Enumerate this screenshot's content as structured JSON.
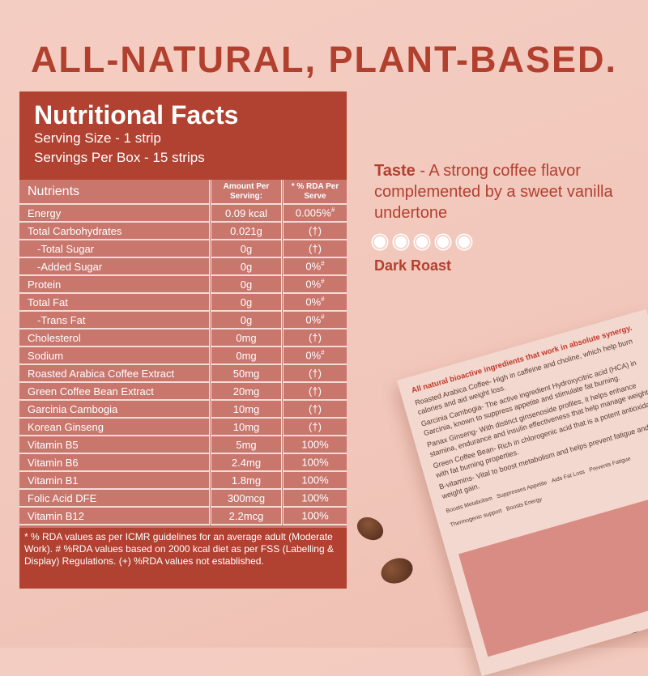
{
  "headline": "ALL-NATURAL, PLANT-BASED.",
  "facts": {
    "title": "Nutritional Facts",
    "serving_size": "Serving Size - 1 strip",
    "servings_per_box": "Servings Per Box - 15 strips",
    "columns": [
      "Nutrients",
      "Amount Per Serving:",
      "* % RDA Per Serve"
    ],
    "rows": [
      {
        "name": "Energy",
        "amount": "0.09 kcal",
        "rda": "0.005%",
        "mark": "#"
      },
      {
        "name": "Total Carbohydrates",
        "amount": "0.021g",
        "rda": "(†)",
        "mark": ""
      },
      {
        "name": "-Total Sugar",
        "amount": "0g",
        "rda": "(†)",
        "mark": ""
      },
      {
        "name": "-Added Sugar",
        "amount": "0g",
        "rda": "0%",
        "mark": "#"
      },
      {
        "name": "Protein",
        "amount": "0g",
        "rda": "0%",
        "mark": "#"
      },
      {
        "name": "Total Fat",
        "amount": "0g",
        "rda": "0%",
        "mark": "#"
      },
      {
        "name": "-Trans Fat",
        "amount": "0g",
        "rda": "0%",
        "mark": "#"
      },
      {
        "name": "Cholesterol",
        "amount": "0mg",
        "rda": "(†)",
        "mark": ""
      },
      {
        "name": "Sodium",
        "amount": "0mg",
        "rda": "0%",
        "mark": "#"
      },
      {
        "name": "Roasted Arabica Coffee Extract",
        "amount": "50mg",
        "rda": "(†)",
        "mark": ""
      },
      {
        "name": "Green Coffee Bean Extract",
        "amount": "20mg",
        "rda": "(†)",
        "mark": ""
      },
      {
        "name": "Garcinia Cambogia",
        "amount": "10mg",
        "rda": "(†)",
        "mark": ""
      },
      {
        "name": "Korean Ginseng",
        "amount": "10mg",
        "rda": "(†)",
        "mark": ""
      },
      {
        "name": "Vitamin B5",
        "amount": "5mg",
        "rda": "100%",
        "mark": ""
      },
      {
        "name": "Vitamin B6",
        "amount": "2.4mg",
        "rda": "100%",
        "mark": ""
      },
      {
        "name": "Vitamin B1",
        "amount": "1.8mg",
        "rda": "100%",
        "mark": ""
      },
      {
        "name": "Folic Acid DFE",
        "amount": "300mcg",
        "rda": "100%",
        "mark": ""
      },
      {
        "name": "Vitamin B12",
        "amount": "2.2mcg",
        "rda": "100%",
        "mark": ""
      }
    ],
    "footnote": "* % RDA values as per ICMR guidelines for an average adult (Moderate Work). # %RDA values based on 2000 kcal diet as per FSS (Labelling & Display) Regulations. (+) %RDA values not established."
  },
  "taste": {
    "label": "Taste",
    "text": " - A strong coffee flavor complemented by a sweet vanilla undertone",
    "rating": 5,
    "rating_max": 5,
    "roast": "Dark Roast"
  },
  "package": {
    "heading": "All natural bioactive ingredients that work in absolute synergy.",
    "lines": [
      "Roasted Arabica Coffee- High in caffeine and choline, which help burn calories and aid weight loss.",
      "Garcinia Cambogia- The active ingredient Hydroxycitric acid (HCA) in Garcinia, known to suppress appetite and stimulate fat burning.",
      "Panax Ginseng- With distinct ginsenoside profiles, it helps enhance stamina, endurance and insulin effectiveness that help manage weight.",
      "Green Coffee Bean- Rich in chlorogenic acid that is a potent antioxidant with fat burning properties.",
      "B-vitamins- Vital to boost metabolism and helps prevent fatigue and weight gain."
    ],
    "badges": [
      "Boosts Metabolism",
      "Suppresses Appetite",
      "Aids Fat Loss",
      "Prevents Fatigue",
      "Thermogenic support",
      "Boosts Energy"
    ]
  }
}
